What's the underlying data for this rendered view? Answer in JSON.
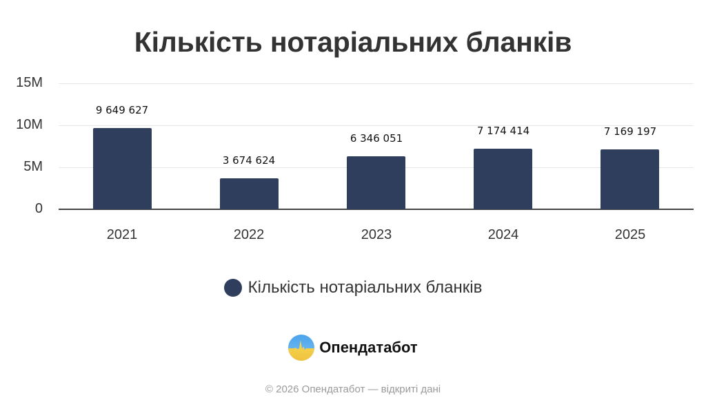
{
  "title": "Кількість нотаріальних бланків",
  "chart_data": {
    "type": "bar",
    "title": "Кількість нотаріальних бланків",
    "xlabel": "",
    "ylabel": "",
    "categories": [
      "2021",
      "2022",
      "2023",
      "2024",
      "2025"
    ],
    "series": [
      {
        "name": "Кількість нотаріальних бланків",
        "values": [
          9649627,
          3674624,
          6346051,
          7174414,
          7169197
        ],
        "color": "#2f3e5c"
      }
    ],
    "data_labels": [
      "9 649 627",
      "3 674 624",
      "6 346 051",
      "7 174 414",
      "7 169 197"
    ],
    "ylim": [
      0,
      15000000
    ],
    "yticks": [
      0,
      5000000,
      10000000,
      15000000
    ],
    "ytick_labels": [
      "0",
      "5M",
      "10M",
      "15M"
    ],
    "grid": true,
    "legend_position": "bottom"
  },
  "legend": {
    "label": "Кількість нотаріальних бланків",
    "color": "#2f3e5c"
  },
  "brand": {
    "icon": "opendatabot-logo-icon",
    "name": "Опендатабот"
  },
  "footer": {
    "text": "© 2026 Опендатабот — відкриті дані"
  }
}
